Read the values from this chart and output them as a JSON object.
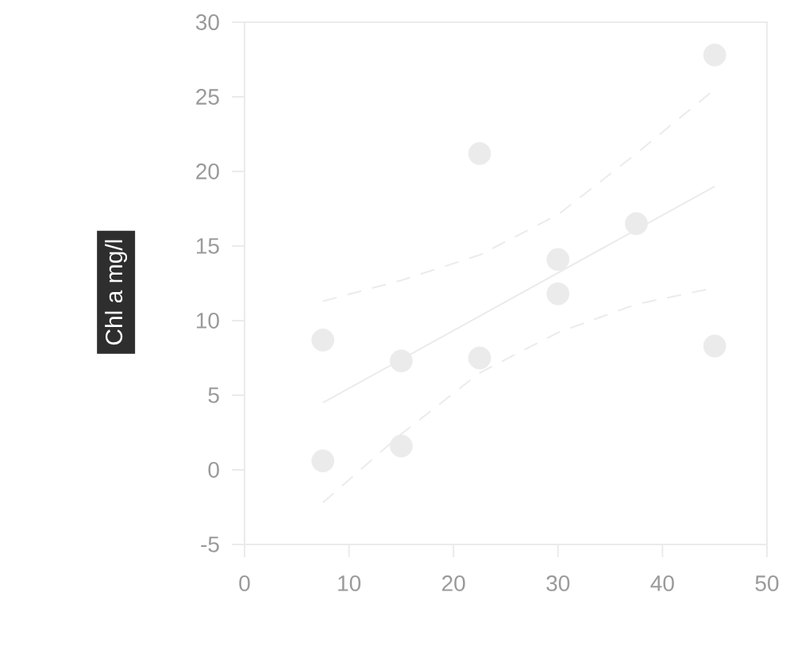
{
  "chart_data": {
    "type": "scatter",
    "ylabel": "Chl a mg/l",
    "xlim": [
      0,
      50
    ],
    "ylim": [
      -5,
      30
    ],
    "xticks": [
      0,
      10,
      20,
      30,
      40,
      50
    ],
    "yticks": [
      -5,
      0,
      5,
      10,
      15,
      20,
      25,
      30
    ],
    "series": [
      {
        "marker": "circle",
        "color": "#ebebeb",
        "x": [
          7.5,
          7.5,
          15,
          15,
          22.5,
          22.5,
          30,
          30,
          37.5,
          45,
          45
        ],
        "values": [
          8.7,
          0.6,
          7.3,
          1.6,
          21.2,
          7.5,
          14.1,
          11.8,
          16.5,
          27.8,
          8.3
        ]
      },
      {
        "type": "line",
        "marker": "none",
        "line_style": "solid",
        "color": "#ebebeb",
        "x": [
          7.5,
          45
        ],
        "values": [
          4.5,
          19.0
        ]
      },
      {
        "type": "line",
        "marker": "none",
        "line_style": "dashed",
        "color": "#ebebeb",
        "x": [
          7.5,
          15,
          22.5,
          30,
          37.5,
          45
        ],
        "values": [
          11.3,
          12.7,
          14.4,
          17.1,
          21.2,
          25.5
        ]
      },
      {
        "type": "line",
        "marker": "none",
        "line_style": "dashed",
        "color": "#ebebeb",
        "x": [
          7.5,
          15,
          22.5,
          30,
          37.5,
          45
        ],
        "values": [
          -2.2,
          2.4,
          6.5,
          9.2,
          11.1,
          12.2
        ]
      }
    ]
  }
}
